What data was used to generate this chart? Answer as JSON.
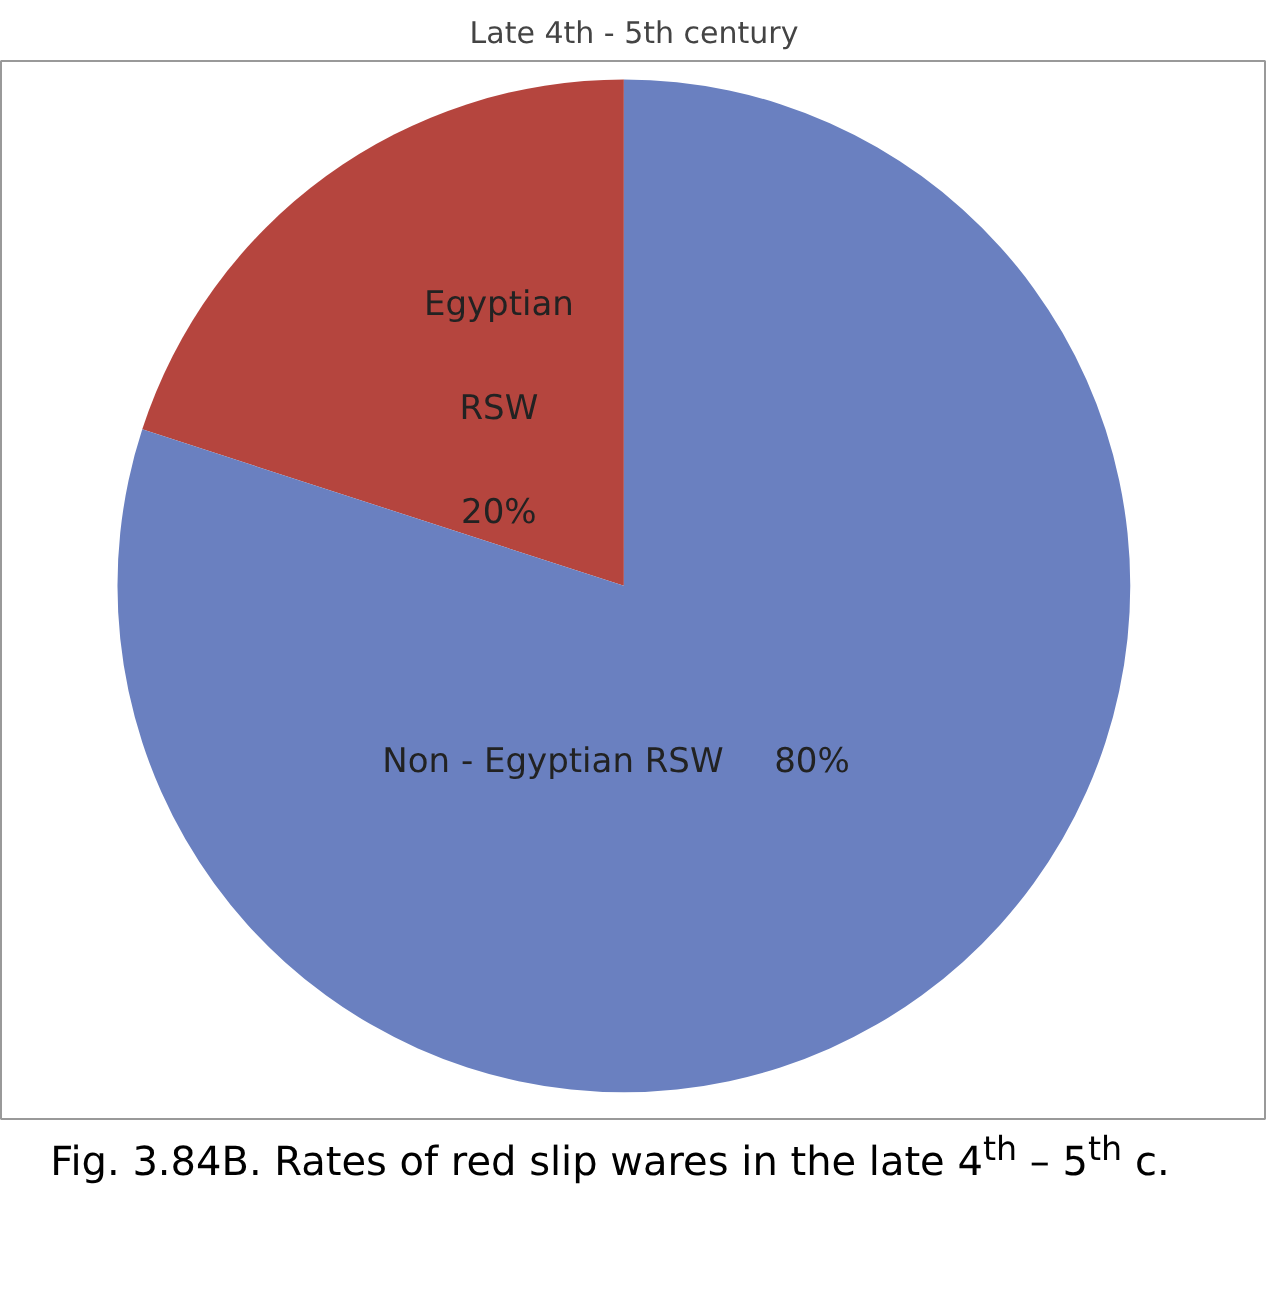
{
  "chart_data": {
    "type": "pie",
    "title": "Late 4th - 5th century",
    "categories": [
      "Egyptian RSW",
      "Non - Egyptian RSW"
    ],
    "values": [
      20,
      80
    ],
    "colors": [
      "#b5453e",
      "#6a80c0"
    ],
    "value_labels": [
      "20%",
      "80%"
    ],
    "annotations": [
      "Fig. 3.84B. Rates of red slip wares in the late 4$^{th}$ – 5$^{th}$ c."
    ]
  }
}
